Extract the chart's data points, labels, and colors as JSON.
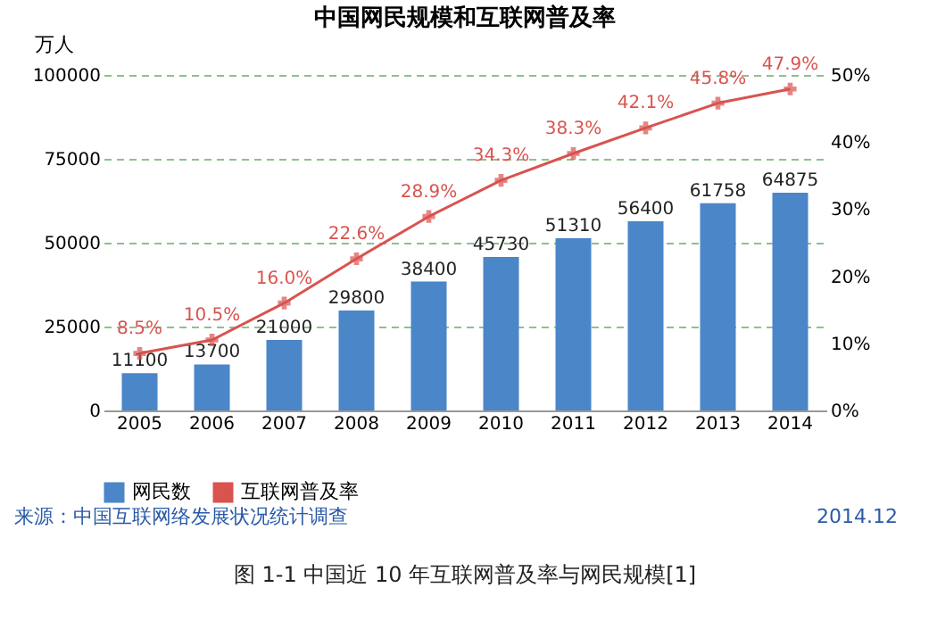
{
  "chart_data": {
    "type": "bar",
    "title": "中国网民规模和互联网普及率",
    "ylabel": "万人",
    "categories": [
      "2005",
      "2006",
      "2007",
      "2008",
      "2009",
      "2010",
      "2011",
      "2012",
      "2013",
      "2014"
    ],
    "series": [
      {
        "name": "网民数",
        "color": "#4a86c8",
        "values": [
          11100,
          13700,
          21000,
          29800,
          38400,
          45730,
          51310,
          56400,
          61758,
          64875
        ],
        "value_labels": [
          "11100",
          "13700",
          "21000",
          "29800",
          "38400",
          "45730",
          "51310",
          "56400",
          "61758",
          "64875"
        ]
      },
      {
        "name": "互联网普及率",
        "type": "line",
        "axis": "y2",
        "color": "#d9534f",
        "marker": "cross",
        "values": [
          8.5,
          10.5,
          16.0,
          22.6,
          28.9,
          34.3,
          38.3,
          42.1,
          45.8,
          47.9
        ],
        "value_labels": [
          "8.5%",
          "10.5%",
          "16.0%",
          "22.6%",
          "28.9%",
          "34.3%",
          "38.3%",
          "42.1%",
          "45.8%",
          "47.9%"
        ]
      }
    ],
    "ylim": [
      0,
      100000
    ],
    "yticks": [
      0,
      25000,
      50000,
      75000,
      100000
    ],
    "y2lim": [
      0,
      50
    ],
    "y2ticks": [
      {
        "value": 0,
        "label": "0%"
      },
      {
        "value": 10,
        "label": "10%"
      },
      {
        "value": 20,
        "label": "20%"
      },
      {
        "value": 30,
        "label": "30%"
      },
      {
        "value": 40,
        "label": "40%"
      },
      {
        "value": 50,
        "label": "50%"
      }
    ],
    "grid": "y",
    "legend": "bottom",
    "annotations": [
      "来源：中国互联网络发展状况统计调查",
      "2014.12",
      "图 1-1 中国近 10 年互联网普及率与网民规模[1]"
    ]
  }
}
